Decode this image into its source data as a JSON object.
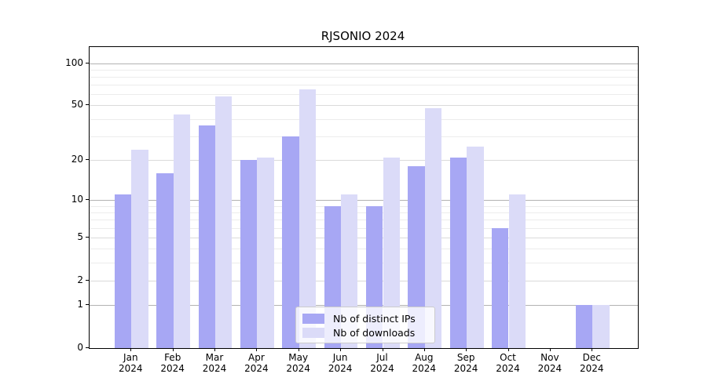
{
  "chart_data": {
    "type": "bar",
    "title": "RJSONIO 2024",
    "categories": [
      "Jan",
      "Feb",
      "Mar",
      "Apr",
      "May",
      "Jun",
      "Jul",
      "Aug",
      "Sep",
      "Oct",
      "Nov",
      "Dec"
    ],
    "category_year": "2024",
    "series": [
      {
        "name": "Nb of distinct IPs",
        "color": "#a7a7f4",
        "values": [
          11,
          16,
          36,
          20,
          30,
          9,
          9,
          18,
          21,
          6,
          0,
          1
        ]
      },
      {
        "name": "Nb of downloads",
        "color": "#dbdbf8",
        "values": [
          24,
          43,
          58,
          21,
          65,
          11,
          21,
          48,
          25,
          11,
          0,
          1
        ]
      }
    ],
    "y_axis": {
      "scale": "log1p",
      "tick_labels": [
        0,
        1,
        2,
        5,
        10,
        20,
        50,
        100
      ],
      "decade_gridlines": [
        1,
        10,
        100
      ],
      "mid_gridlines": [
        2,
        5,
        20,
        50
      ],
      "minor_gridlines": [
        3,
        4,
        6,
        7,
        8,
        9,
        30,
        40,
        60,
        70,
        80,
        90
      ],
      "ylim": [
        0,
        130
      ]
    },
    "legend": {
      "position": "bottom-center"
    },
    "grid": true,
    "colors": {
      "grid_decade": "#b2b2b2",
      "grid_mid": "#dadada",
      "grid_minor": "#ececec",
      "axis": "#000000"
    }
  }
}
